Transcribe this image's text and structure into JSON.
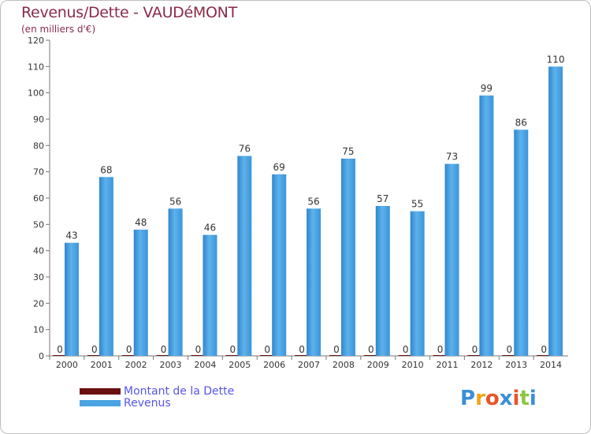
{
  "chart_data": {
    "type": "bar",
    "title": "Revenus/Dette - VAUDéMONT",
    "subtitle": "(en milliers d'€)",
    "categories": [
      "2000",
      "2001",
      "2002",
      "2003",
      "2004",
      "2005",
      "2006",
      "2007",
      "2008",
      "2009",
      "2010",
      "2011",
      "2012",
      "2013",
      "2014"
    ],
    "series": [
      {
        "name": "Montant de la Dette",
        "color": "#6b1010",
        "values": [
          0,
          0,
          0,
          0,
          0,
          0,
          0,
          0,
          0,
          0,
          0,
          0,
          0,
          0,
          0
        ]
      },
      {
        "name": "Revenus",
        "color": "#4aa3e2",
        "values": [
          43,
          68,
          48,
          56,
          46,
          76,
          69,
          56,
          75,
          57,
          55,
          73,
          99,
          86,
          110
        ]
      }
    ],
    "ylim": [
      0,
      120
    ],
    "yticks": [
      0,
      10,
      20,
      30,
      40,
      50,
      60,
      70,
      80,
      90,
      100,
      110,
      120
    ],
    "xlabel": "",
    "ylabel": "",
    "grid": false,
    "legend_position": "bottom-left"
  },
  "legend": {
    "dette_label": "Montant de la Dette",
    "revenus_label": "Revenus"
  },
  "logo": {
    "letters": [
      "P",
      "r",
      "o",
      "x",
      "i",
      "t",
      "i"
    ],
    "colors": [
      "#3a8fd8",
      "#f2a21a",
      "#e8542a",
      "#3a8fd8",
      "#e8542a",
      "#8cc63f",
      "#3a8fd8"
    ]
  }
}
